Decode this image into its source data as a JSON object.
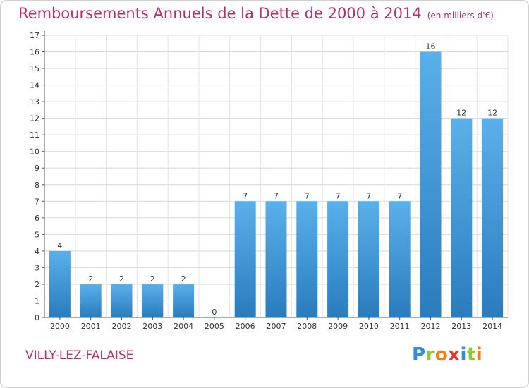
{
  "title": "Remboursements Annuels de la Dette de 2000 à 2014",
  "unit": "(en milliers d'€)",
  "place_name": "VILLY-LEZ-FALAISE",
  "logo_text": "Proxiti",
  "colors": {
    "title": "#b52f6a",
    "bar_top": "#5ab0ea",
    "bar_bottom": "#2a7cbd"
  },
  "chart_data": {
    "type": "bar",
    "categories": [
      "2000",
      "2001",
      "2002",
      "2003",
      "2004",
      "2005",
      "2006",
      "2007",
      "2008",
      "2009",
      "2010",
      "2011",
      "2012",
      "2013",
      "2014"
    ],
    "values": [
      4,
      2,
      2,
      2,
      2,
      0,
      7,
      7,
      7,
      7,
      7,
      7,
      16,
      12,
      12
    ],
    "ylim": [
      0,
      17
    ],
    "yticks": [
      0,
      1,
      2,
      3,
      4,
      5,
      6,
      7,
      8,
      9,
      10,
      11,
      12,
      13,
      14,
      15,
      16,
      17
    ],
    "grid": true,
    "xlabel": "",
    "ylabel": ""
  }
}
